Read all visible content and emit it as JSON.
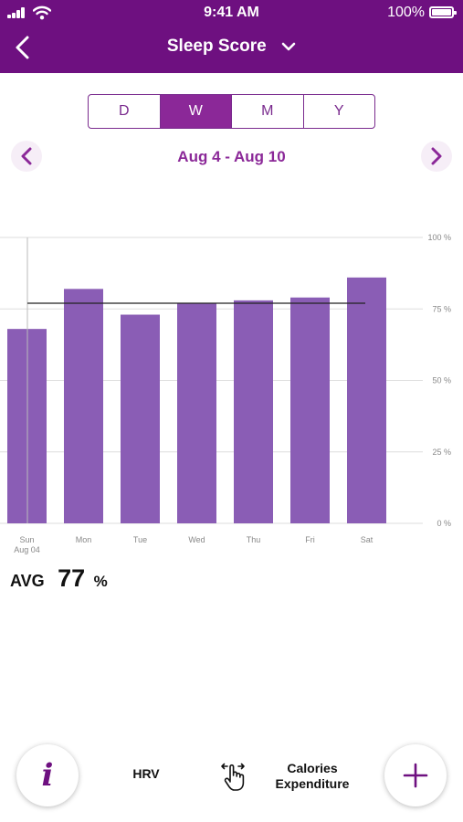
{
  "status_bar": {
    "time": "9:41 AM",
    "battery_pct": "100%"
  },
  "nav": {
    "title": "Sleep Score"
  },
  "segments": [
    {
      "label": "D",
      "active": false
    },
    {
      "label": "W",
      "active": true
    },
    {
      "label": "M",
      "active": false
    },
    {
      "label": "Y",
      "active": false
    }
  ],
  "date_range": "Aug 4 - Aug 10",
  "chart_data": {
    "type": "bar",
    "categories": [
      "Sun",
      "Mon",
      "Tue",
      "Wed",
      "Thu",
      "Fri",
      "Sat"
    ],
    "first_category_sublabel": "Aug 04",
    "values": [
      68,
      82,
      73,
      77,
      78,
      79,
      86
    ],
    "average_line": 77,
    "ylim": [
      0,
      100
    ],
    "yticks": [
      "0 %",
      "25 %",
      "50 %",
      "75 %",
      "100 %"
    ],
    "ytick_values": [
      0,
      25,
      50,
      75,
      100
    ],
    "grid": true,
    "bar_color": "#8a5db5"
  },
  "avg": {
    "label": "AVG",
    "value": "77",
    "unit": "%"
  },
  "bottom_bar": {
    "hrv_label": "HRV",
    "calories_line1": "Calories",
    "calories_line2": "Expenditure"
  },
  "colors": {
    "header": "#6e1080",
    "accent": "#8b2898",
    "bar": "#8a5db5"
  }
}
